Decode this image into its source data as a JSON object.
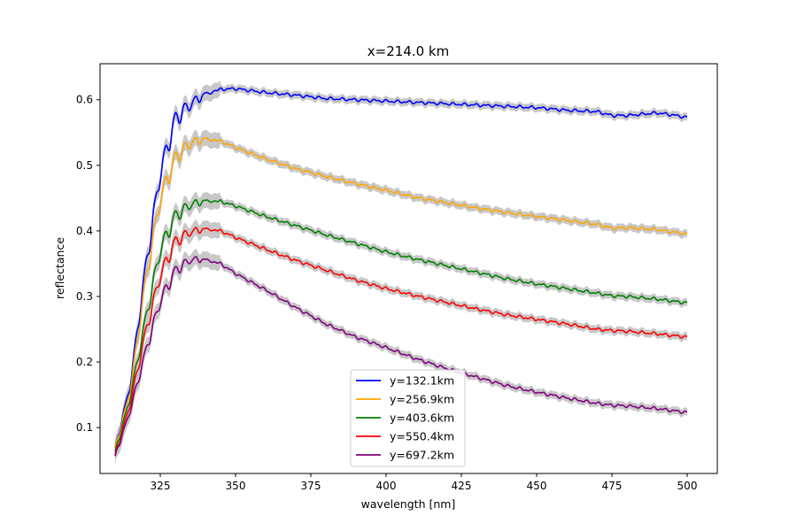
{
  "chart_data": {
    "type": "line",
    "title": "x=214.0 km",
    "xlabel": "wavelength [nm]",
    "ylabel": "reflectance",
    "xlim": [
      305,
      510
    ],
    "ylim": [
      0.03,
      0.655
    ],
    "xticks": [
      325,
      350,
      375,
      400,
      425,
      450,
      475,
      500
    ],
    "xtick_labels": [
      "325",
      "350",
      "375",
      "400",
      "425",
      "450",
      "475",
      "500"
    ],
    "yticks": [
      0.1,
      0.2,
      0.3,
      0.4,
      0.5,
      0.6
    ],
    "ytick_labels": [
      "0.1",
      "0.2",
      "0.3",
      "0.4",
      "0.5",
      "0.6"
    ],
    "grid": false,
    "legend_position": "lower-center",
    "uncertainty_band_color": "#c8c8c8",
    "series": [
      {
        "name": "y=132.1km",
        "color": "#0000ff",
        "x": [
          310,
          315,
          320,
          325,
          330,
          335,
          340,
          345,
          350,
          360,
          370,
          380,
          390,
          400,
          410,
          420,
          430,
          440,
          450,
          460,
          470,
          475,
          480,
          485,
          490,
          495,
          500
        ],
        "y": [
          0.07,
          0.17,
          0.35,
          0.5,
          0.58,
          0.6,
          0.612,
          0.616,
          0.617,
          0.611,
          0.607,
          0.602,
          0.6,
          0.598,
          0.596,
          0.594,
          0.592,
          0.59,
          0.588,
          0.584,
          0.582,
          0.576,
          0.576,
          0.578,
          0.58,
          0.577,
          0.573
        ]
      },
      {
        "name": "y=256.9km",
        "color": "#ffa500",
        "x": [
          310,
          315,
          320,
          325,
          330,
          335,
          340,
          345,
          350,
          360,
          370,
          380,
          390,
          400,
          410,
          420,
          430,
          440,
          450,
          460,
          470,
          475,
          480,
          490,
          500
        ],
        "y": [
          0.07,
          0.16,
          0.33,
          0.46,
          0.52,
          0.54,
          0.543,
          0.537,
          0.527,
          0.51,
          0.495,
          0.483,
          0.472,
          0.462,
          0.451,
          0.443,
          0.435,
          0.428,
          0.422,
          0.416,
          0.41,
          0.404,
          0.405,
          0.402,
          0.395
        ]
      },
      {
        "name": "y=403.6km",
        "color": "#008000",
        "x": [
          310,
          315,
          320,
          325,
          330,
          335,
          340,
          345,
          350,
          360,
          370,
          380,
          390,
          400,
          410,
          420,
          430,
          440,
          450,
          460,
          470,
          475,
          480,
          490,
          500
        ],
        "y": [
          0.065,
          0.15,
          0.27,
          0.38,
          0.43,
          0.445,
          0.448,
          0.445,
          0.438,
          0.422,
          0.408,
          0.394,
          0.381,
          0.368,
          0.357,
          0.347,
          0.337,
          0.327,
          0.319,
          0.312,
          0.305,
          0.301,
          0.3,
          0.296,
          0.29
        ]
      },
      {
        "name": "y=550.4km",
        "color": "#ff0000",
        "x": [
          310,
          315,
          320,
          325,
          330,
          335,
          340,
          345,
          350,
          360,
          370,
          380,
          390,
          400,
          410,
          420,
          430,
          440,
          450,
          460,
          470,
          475,
          480,
          490,
          500
        ],
        "y": [
          0.06,
          0.14,
          0.25,
          0.34,
          0.39,
          0.403,
          0.405,
          0.4,
          0.39,
          0.372,
          0.355,
          0.34,
          0.325,
          0.312,
          0.301,
          0.291,
          0.281,
          0.272,
          0.265,
          0.258,
          0.25,
          0.248,
          0.247,
          0.243,
          0.238
        ]
      },
      {
        "name": "y=697.2km",
        "color": "#800080",
        "x": [
          310,
          315,
          320,
          325,
          330,
          335,
          340,
          345,
          350,
          360,
          370,
          380,
          390,
          400,
          410,
          420,
          430,
          440,
          450,
          460,
          470,
          475,
          480,
          490,
          500
        ],
        "y": [
          0.058,
          0.13,
          0.22,
          0.3,
          0.345,
          0.36,
          0.358,
          0.35,
          0.335,
          0.31,
          0.283,
          0.258,
          0.238,
          0.222,
          0.205,
          0.19,
          0.177,
          0.164,
          0.154,
          0.145,
          0.137,
          0.134,
          0.133,
          0.129,
          0.123
        ]
      }
    ]
  }
}
